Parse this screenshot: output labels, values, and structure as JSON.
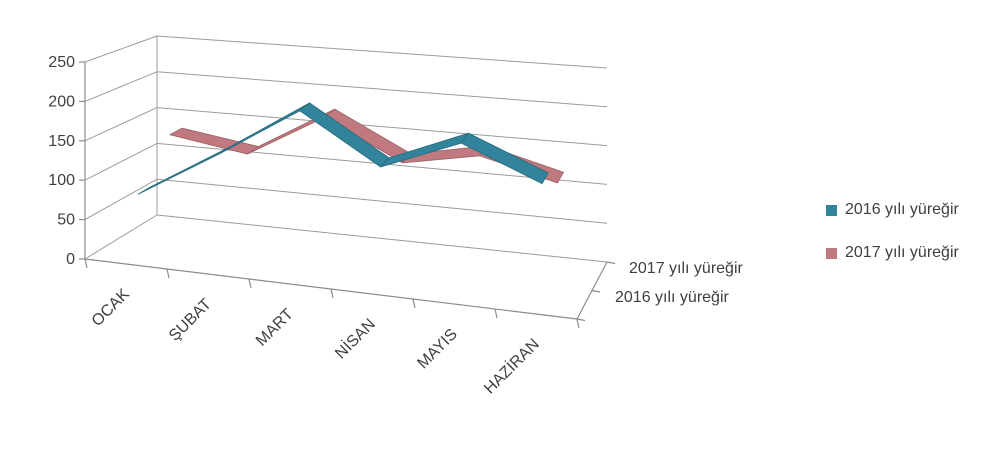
{
  "chart_data": {
    "type": "line",
    "projection": "3d",
    "title": "",
    "categories": [
      "OCAK",
      "ŞUBAT",
      "MART",
      "NİSAN",
      "MAYIS",
      "HAZİRAN"
    ],
    "series": [
      {
        "name": "2016 yılı yüreğir",
        "color": "#31849B",
        "depth_row": "front",
        "values": [
          80,
          145,
          215,
          155,
          200,
          160
        ]
      },
      {
        "name": "2017 yılı yüreğir",
        "color": "#C0797E",
        "depth_row": "back",
        "values": [
          135,
          120,
          180,
          130,
          150,
          125
        ]
      }
    ],
    "value_axis": {
      "min": 0,
      "max": 250,
      "step": 50,
      "tick_labels": [
        "0",
        "50",
        "100",
        "150",
        "200",
        "250"
      ]
    },
    "depth_axis_labels": [
      "2017 yılı yüreğir",
      "2016 yılı yüreğir"
    ],
    "legend_position": "right",
    "grid": true,
    "colors": {
      "background": "#FFFFFF",
      "gridline": "#9B9B9B",
      "axis": "#8C8C8C",
      "text": "#3F3F3F"
    }
  }
}
